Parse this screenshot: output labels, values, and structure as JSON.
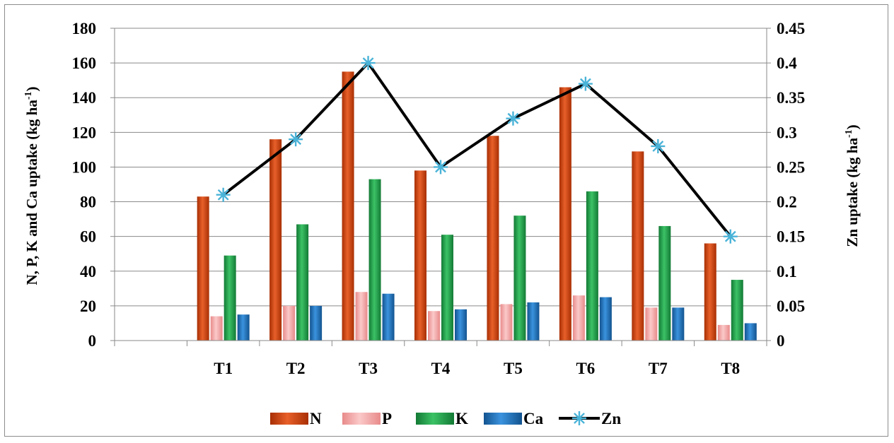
{
  "chart_data": {
    "type": "bar",
    "categories": [
      "",
      "T1",
      "T2",
      "T3",
      "T4",
      "T5",
      "T6",
      "T7",
      "T8"
    ],
    "series": [
      {
        "name": "N",
        "axis": "left",
        "color": "#d9420b",
        "values": [
          null,
          83,
          116,
          155,
          98,
          118,
          146,
          109,
          56
        ]
      },
      {
        "name": "P",
        "axis": "left",
        "color": "#f4a6a6",
        "values": [
          null,
          14,
          20,
          28,
          17,
          21,
          26,
          19,
          9
        ]
      },
      {
        "name": "K",
        "axis": "left",
        "color": "#1fa34a",
        "values": [
          null,
          49,
          67,
          93,
          61,
          72,
          86,
          66,
          35
        ]
      },
      {
        "name": "Ca",
        "axis": "left",
        "color": "#1b72c2",
        "values": [
          null,
          15,
          20,
          27,
          18,
          22,
          25,
          19,
          10
        ]
      },
      {
        "name": "Zn",
        "axis": "right",
        "type": "line",
        "color": "#000000",
        "marker_color": "#4ab3d8",
        "values": [
          null,
          0.21,
          0.29,
          0.4,
          0.25,
          0.32,
          0.37,
          0.28,
          0.15
        ]
      }
    ],
    "ylabel": "N, P, K and Ca uptake  (kg ha",
    "ylabel_sup": "-1",
    "ylabel_end": ")",
    "y2label": "Zn uptake (kg ha",
    "y2label_sup": "-1",
    "y2label_end": ")",
    "ylim": [
      0,
      180
    ],
    "y2lim": [
      0,
      0.45
    ],
    "yticks": [
      0,
      20,
      40,
      60,
      80,
      100,
      120,
      140,
      160,
      180
    ],
    "y2ticks": [
      "0",
      "0.05",
      "0.1",
      "0.15",
      "0.2",
      "0.25",
      "0.3",
      "0.35",
      "0.4",
      "0.45"
    ],
    "grid": true,
    "legend_position": "bottom"
  }
}
